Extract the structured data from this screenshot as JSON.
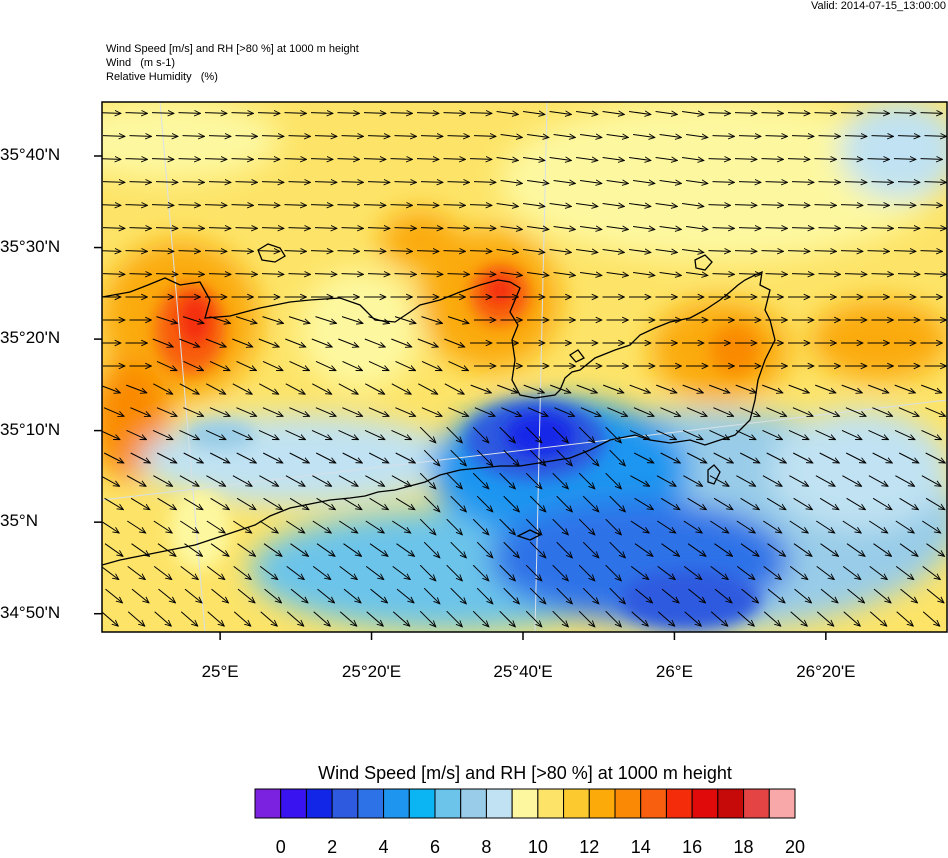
{
  "valid_time": "Valid: 2014-07-15_13:00:00",
  "titles": {
    "line1": "Wind Speed [m/s] and RH [>80 %] at 1000 m height",
    "line2": "Wind   (m s-1)",
    "line3": "Relative Humidity   (%)"
  },
  "lat_ticks": [
    {
      "label": "35°40'N",
      "lat": 35.6667
    },
    {
      "label": "35°30'N",
      "lat": 35.5
    },
    {
      "label": "35°20'N",
      "lat": 35.3333
    },
    {
      "label": "35°10'N",
      "lat": 35.1667
    },
    {
      "label": "35°N",
      "lat": 35.0
    },
    {
      "label": "34°50'N",
      "lat": 34.8333
    }
  ],
  "lon_ticks": [
    {
      "label": "25°E",
      "lon": 25.0
    },
    {
      "label": "25°20'E",
      "lon": 25.3333
    },
    {
      "label": "25°40'E",
      "lon": 25.6667
    },
    {
      "label": "26°E",
      "lon": 26.0
    },
    {
      "label": "26°20'E",
      "lon": 26.3333
    }
  ],
  "map_extent": {
    "lon_min": 24.74,
    "lon_max": 26.6,
    "lat_min": 34.8,
    "lat_max": 35.765
  },
  "colorbar": {
    "title": "Wind Speed [m/s] and RH [>80 %] at 1000 m height",
    "colors": [
      "#7b22e0",
      "#3a14f0",
      "#1226e8",
      "#2e5adf",
      "#2e72e8",
      "#1e96f0",
      "#0bb4f2",
      "#6cc4ea",
      "#98cce8",
      "#c0e2f2",
      "#fdf8a0",
      "#fde468",
      "#fcca2e",
      "#fbaa0a",
      "#fa8a06",
      "#f86010",
      "#f42c0a",
      "#e00a0a",
      "#c60a0a",
      "#e44444",
      "#f8a8a8"
    ],
    "labels": [
      "0",
      "2",
      "4",
      "6",
      "8",
      "10",
      "12",
      "14",
      "16",
      "18",
      "20"
    ]
  },
  "wind_field": {
    "direction": "mostly eastward, turning south-eastward over the south-east",
    "units": "m s-1"
  }
}
